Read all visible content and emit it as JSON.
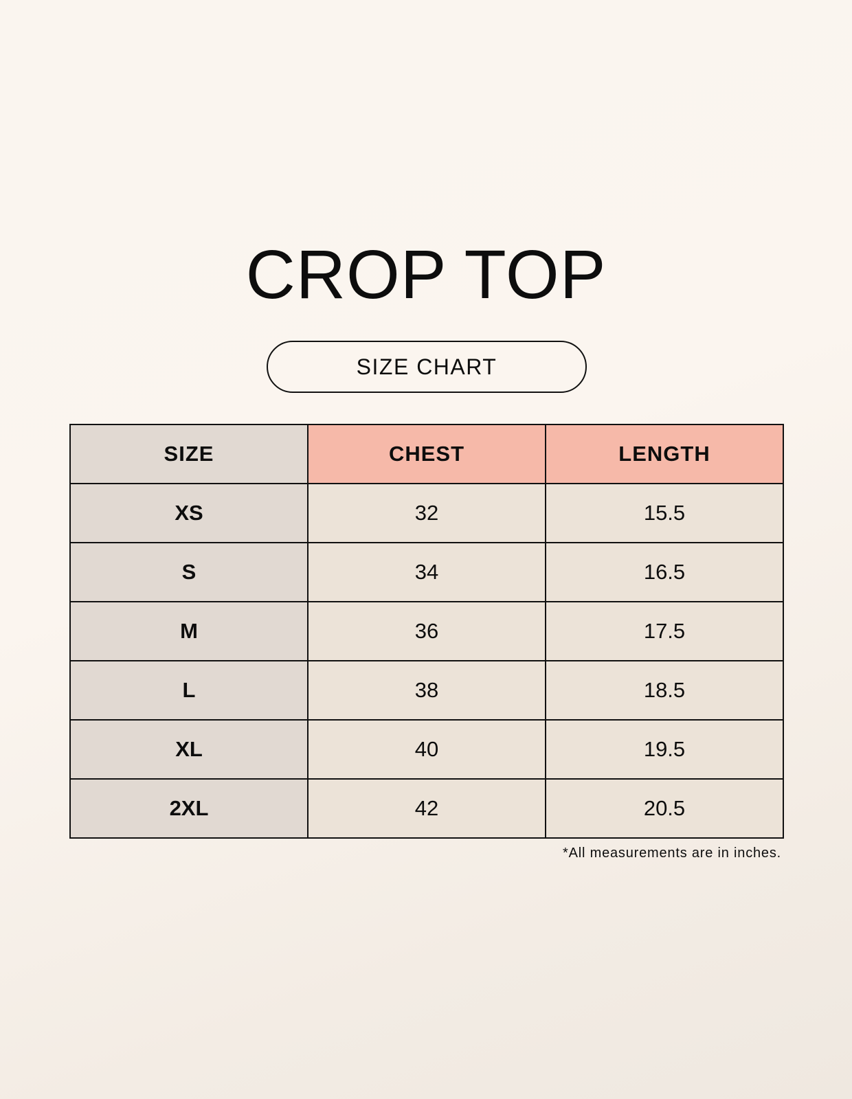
{
  "title": "CROP TOP",
  "subtitle": "SIZE CHART",
  "table": {
    "headers": [
      "SIZE",
      "CHEST",
      "LENGTH"
    ],
    "rows": [
      [
        "XS",
        "32",
        "15.5"
      ],
      [
        "S",
        "34",
        "16.5"
      ],
      [
        "M",
        "36",
        "17.5"
      ],
      [
        "L",
        "38",
        "18.5"
      ],
      [
        "XL",
        "40",
        "19.5"
      ],
      [
        "2XL",
        "42",
        "20.5"
      ]
    ]
  },
  "footnote": "*All measurements are in inches.",
  "colors": {
    "size_column": "#e1d9d2",
    "measure_header": "#f6b9a9",
    "value_cell": "#ece3d8"
  }
}
